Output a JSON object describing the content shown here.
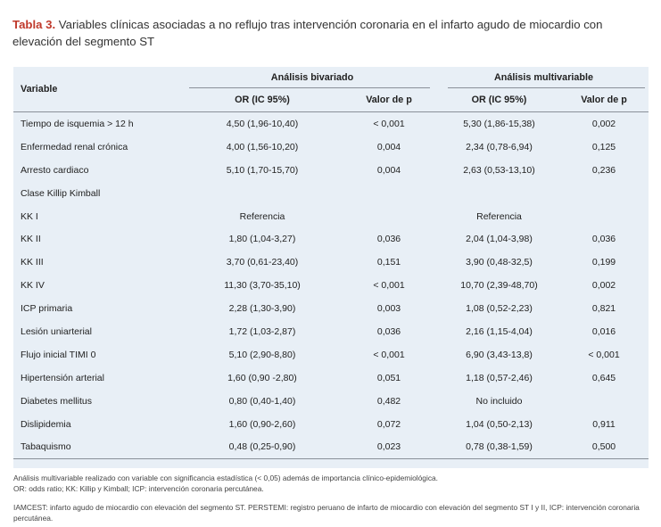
{
  "caption": {
    "label": "Tabla 3.",
    "text": " Variables clínicas asociadas a no reflujo tras intervención coronaria en el infarto agudo de miocardio con elevación del segmento ST"
  },
  "table": {
    "header": {
      "variable": "Variable",
      "group_bivariate": "Análisis bivariado",
      "group_multivariable": "Análisis multivariable",
      "or_bi": "OR (IC 95%)",
      "p_bi": "Valor de p",
      "or_multi": "OR (IC 95%)",
      "p_multi": "Valor de p"
    },
    "rows": [
      {
        "variable": "Tiempo de isquemia > 12 h",
        "or_bi": "4,50 (1,96-10,40)",
        "p_bi": "< 0,001",
        "or_multi": "5,30 (1,86-15,38)",
        "p_multi": "0,002"
      },
      {
        "variable": "Enfermedad renal crónica",
        "or_bi": "4,00 (1,56-10,20)",
        "p_bi": "0,004",
        "or_multi": "2,34 (0,78-6,94)",
        "p_multi": "0,125"
      },
      {
        "variable": "Arresto cardiaco",
        "or_bi": "5,10 (1,70-15,70)",
        "p_bi": "0,004",
        "or_multi": "2,63 (0,53-13,10)",
        "p_multi": "0,236"
      },
      {
        "variable": "Clase Killip Kimball",
        "or_bi": "",
        "p_bi": "",
        "or_multi": "",
        "p_multi": ""
      },
      {
        "variable": "KK I",
        "or_bi": "Referencia",
        "p_bi": "",
        "or_multi": "Referencia",
        "p_multi": ""
      },
      {
        "variable": "KK II",
        "or_bi": "1,80 (1,04-3,27)",
        "p_bi": "0,036",
        "or_multi": "2,04 (1,04-3,98)",
        "p_multi": "0,036"
      },
      {
        "variable": "KK III",
        "or_bi": "3,70 (0,61-23,40)",
        "p_bi": "0,151",
        "or_multi": "3,90 (0,48-32,5)",
        "p_multi": "0,199"
      },
      {
        "variable": "KK IV",
        "or_bi": "11,30 (3,70-35,10)",
        "p_bi": "< 0,001",
        "or_multi": "10,70 (2,39-48,70)",
        "p_multi": "0,002"
      },
      {
        "variable": "ICP primaria",
        "or_bi": "2,28 (1,30-3,90)",
        "p_bi": "0,003",
        "or_multi": "1,08 (0,52-2,23)",
        "p_multi": "0,821"
      },
      {
        "variable": "Lesión uniarterial",
        "or_bi": "1,72 (1,03-2,87)",
        "p_bi": "0,036",
        "or_multi": "2,16 (1,15-4,04)",
        "p_multi": "0,016"
      },
      {
        "variable": "Flujo inicial TIMI 0",
        "or_bi": "5,10 (2,90-8,80)",
        "p_bi": "< 0,001",
        "or_multi": "6,90 (3,43-13,8)",
        "p_multi": "< 0,001"
      },
      {
        "variable": "Hipertensión arterial",
        "or_bi": "1,60 (0,90 -2,80)",
        "p_bi": "0,051",
        "or_multi": "1,18 (0,57-2,46)",
        "p_multi": "0,645"
      },
      {
        "variable": "Diabetes mellitus",
        "or_bi": "0,80 (0,40-1,40)",
        "p_bi": "0,482",
        "or_multi": "No incluido",
        "p_multi": ""
      },
      {
        "variable": "Dislipidemia",
        "or_bi": "1,60 (0,90-2,60)",
        "p_bi": "0,072",
        "or_multi": "1,04 (0,50-2,13)",
        "p_multi": "0,911"
      },
      {
        "variable": "Tabaquismo",
        "or_bi": "0,48 (0,25-0,90)",
        "p_bi": "0,023",
        "or_multi": "0,78 (0,38-1,59)",
        "p_multi": "0,500"
      }
    ]
  },
  "footnotes": {
    "line1": "Análisis multivariable realizado con variable con significancia estadística (< 0,05) además de importancia clínico-epidemiológica.",
    "line2": "OR: odds ratio; KK: Killip y Kimball; ICP: intervención coronaria percutánea.",
    "line3": "IAMCEST: infarto agudo de miocardio con elevación del segmento ST. PERSTEMI: registro peruano de infarto de miocardio con elevación del segmento ST I y II, ICP: intervención coronaria percutánea."
  }
}
